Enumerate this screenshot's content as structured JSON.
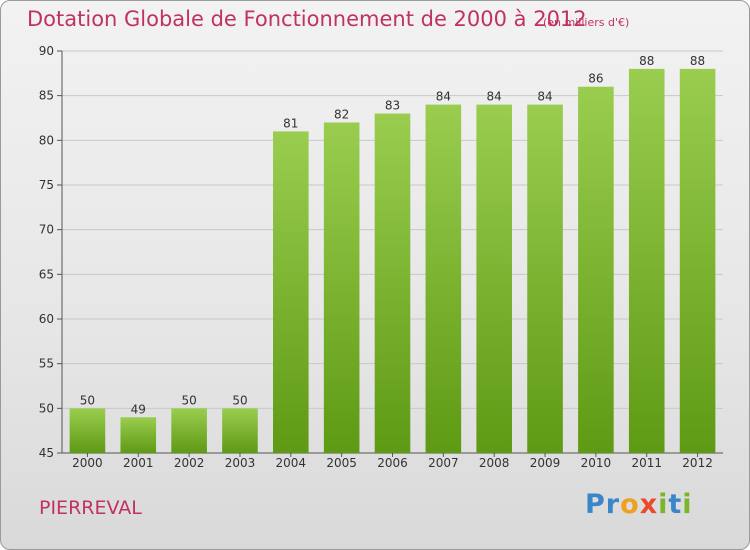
{
  "chart_data": {
    "type": "bar",
    "title": "Dotation Globale de Fonctionnement de 2000 à 2012",
    "unit_note": "(en milliers d'€)",
    "categories": [
      "2000",
      "2001",
      "2002",
      "2003",
      "2004",
      "2005",
      "2006",
      "2007",
      "2008",
      "2009",
      "2010",
      "2011",
      "2012"
    ],
    "values": [
      50,
      49,
      50,
      50,
      81,
      82,
      83,
      84,
      84,
      84,
      86,
      88,
      88
    ],
    "ylim": [
      45,
      90
    ],
    "yticks": [
      45,
      50,
      55,
      60,
      65,
      70,
      75,
      80,
      85,
      90
    ],
    "grid": true,
    "bar_color_top": "#9acd4f",
    "bar_color_bottom": "#5e9a14",
    "grid_color": "#c8c8c8"
  },
  "commune": "PIERREVAL",
  "logo": {
    "letters": [
      {
        "ch": "P",
        "color": "#3a86c8"
      },
      {
        "ch": "r",
        "color": "#3a86c8"
      },
      {
        "ch": "o",
        "color": "#f0a020"
      },
      {
        "ch": "x",
        "color": "#e84a2a"
      },
      {
        "ch": "i",
        "color": "#7ab52a"
      },
      {
        "ch": "t",
        "color": "#3a86c8"
      },
      {
        "ch": "i",
        "color": "#7ab52a"
      }
    ]
  }
}
